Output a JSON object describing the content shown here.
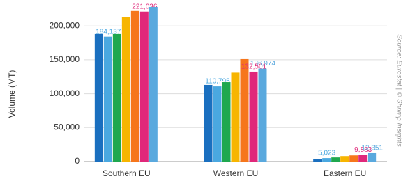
{
  "chart_data": {
    "type": "bar",
    "y_label": "Volume (MT)",
    "source": "Source: Eurostat | © Shrimp Insights",
    "categories": [
      "Southern EU",
      "Western EU",
      "Eastern EU"
    ],
    "series": [
      {
        "color": "#1a6fbf",
        "values": [
          188000,
          113000,
          4000
        ]
      },
      {
        "color": "#4aa8e0",
        "values": [
          184137,
          110795,
          5023
        ],
        "value_labels": [
          "184,137",
          "110,795",
          "5,023"
        ]
      },
      {
        "color": "#1fa84f",
        "values": [
          188000,
          117000,
          6000
        ]
      },
      {
        "color": "#f7b500",
        "values": [
          213000,
          131000,
          8000
        ]
      },
      {
        "color": "#f6761c",
        "values": [
          222000,
          151000,
          9000
        ]
      },
      {
        "color": "#e0287a",
        "values": [
          221036,
          132501,
          9883
        ],
        "value_labels": [
          "221,036",
          "132,501",
          "9,883"
        ]
      },
      {
        "color": "#5aa9de",
        "values": [
          228000,
          136974,
          12351
        ],
        "value_labels": [
          null,
          "136,974",
          "12,351"
        ]
      }
    ],
    "ylim": [
      0,
      230000
    ],
    "yticks": [
      0,
      {
        "value": 50000,
        "label": "50,000"
      },
      {
        "value": 100000,
        "label": "100,000"
      },
      {
        "value": 150000,
        "label": "150,000"
      },
      {
        "value": 200000,
        "label": "200,000"
      }
    ],
    "grid": true
  }
}
